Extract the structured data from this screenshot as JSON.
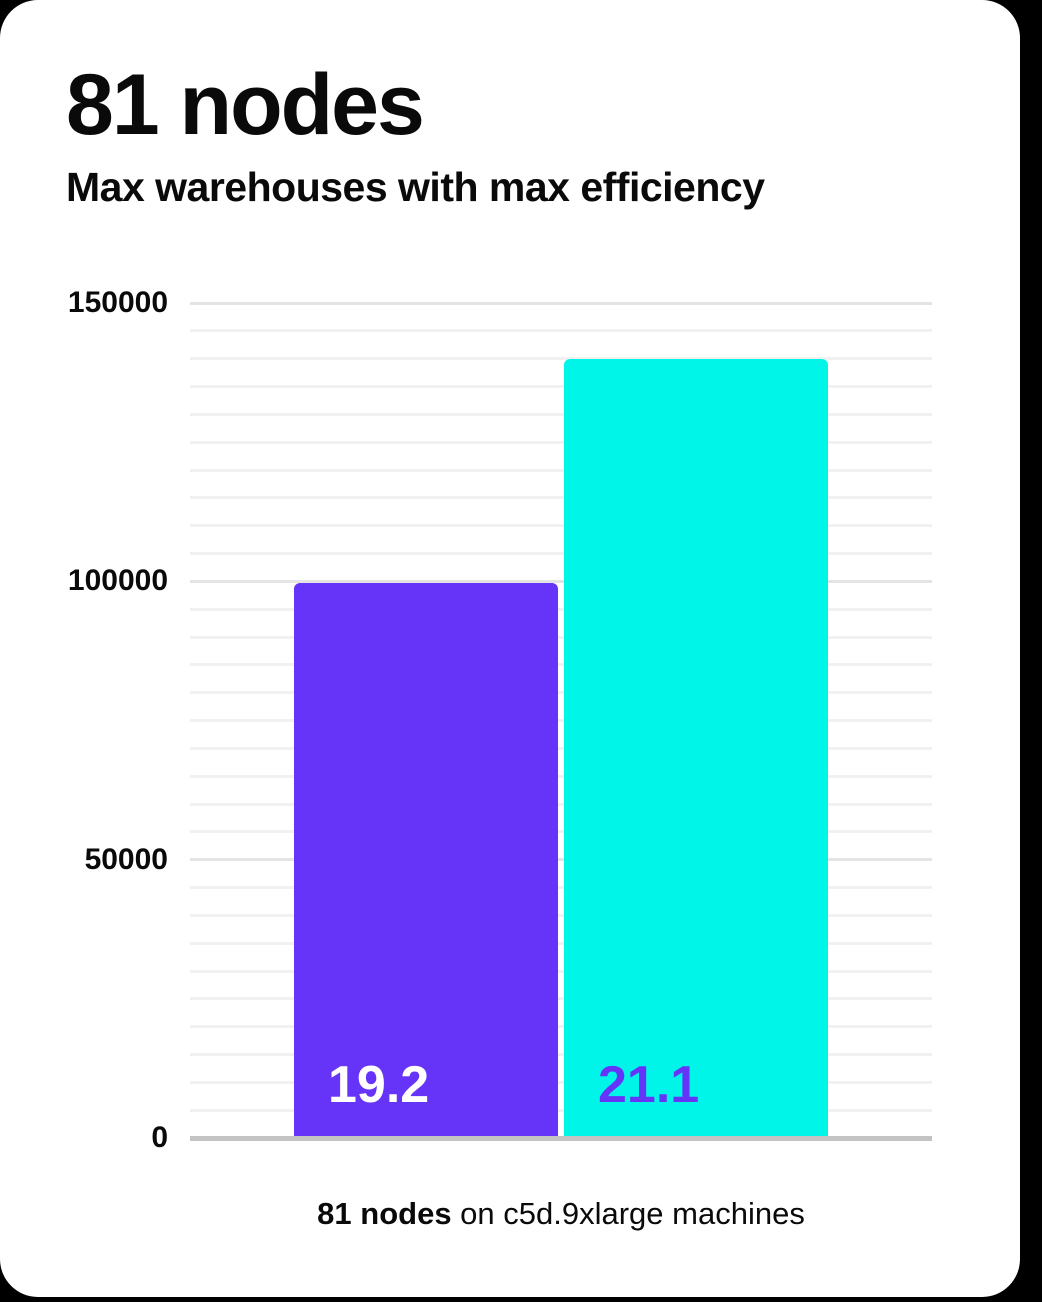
{
  "header": {
    "title": "81 nodes",
    "subtitle": "Max warehouses with max efficiency"
  },
  "caption": {
    "bold": "81 nodes",
    "rest": " on c5d.9xlarge machines"
  },
  "colors": {
    "page_bg": "#000000",
    "card_bg": "#ffffff",
    "text": "#0a0a0a",
    "purple": "#6634F8",
    "cyan": "#00F5E9",
    "grid_minor": "#f1f1f1",
    "grid_major": "#e4e4e4",
    "axis_line": "#c3c3c3"
  },
  "chart_data": {
    "type": "bar",
    "title": "81 nodes",
    "subtitle": "Max warehouses with max efficiency",
    "categories": [
      "19.2",
      "21.1"
    ],
    "values": [
      99700,
      140000
    ],
    "bars": [
      {
        "label": "19.2",
        "value": 99700,
        "color": "#6634F8",
        "label_color": "#ffffff"
      },
      {
        "label": "21.1",
        "value": 140000,
        "color": "#00F5E9",
        "label_color": "#6634F8"
      }
    ],
    "ylim": [
      0,
      150000
    ],
    "yticks": [
      0,
      50000,
      100000,
      150000
    ],
    "minor_step": 5000,
    "major_step": 50000,
    "grid": "horizontal",
    "legend": "none",
    "xlabel": "81 nodes on c5d.9xlarge machines",
    "ylabel": ""
  }
}
